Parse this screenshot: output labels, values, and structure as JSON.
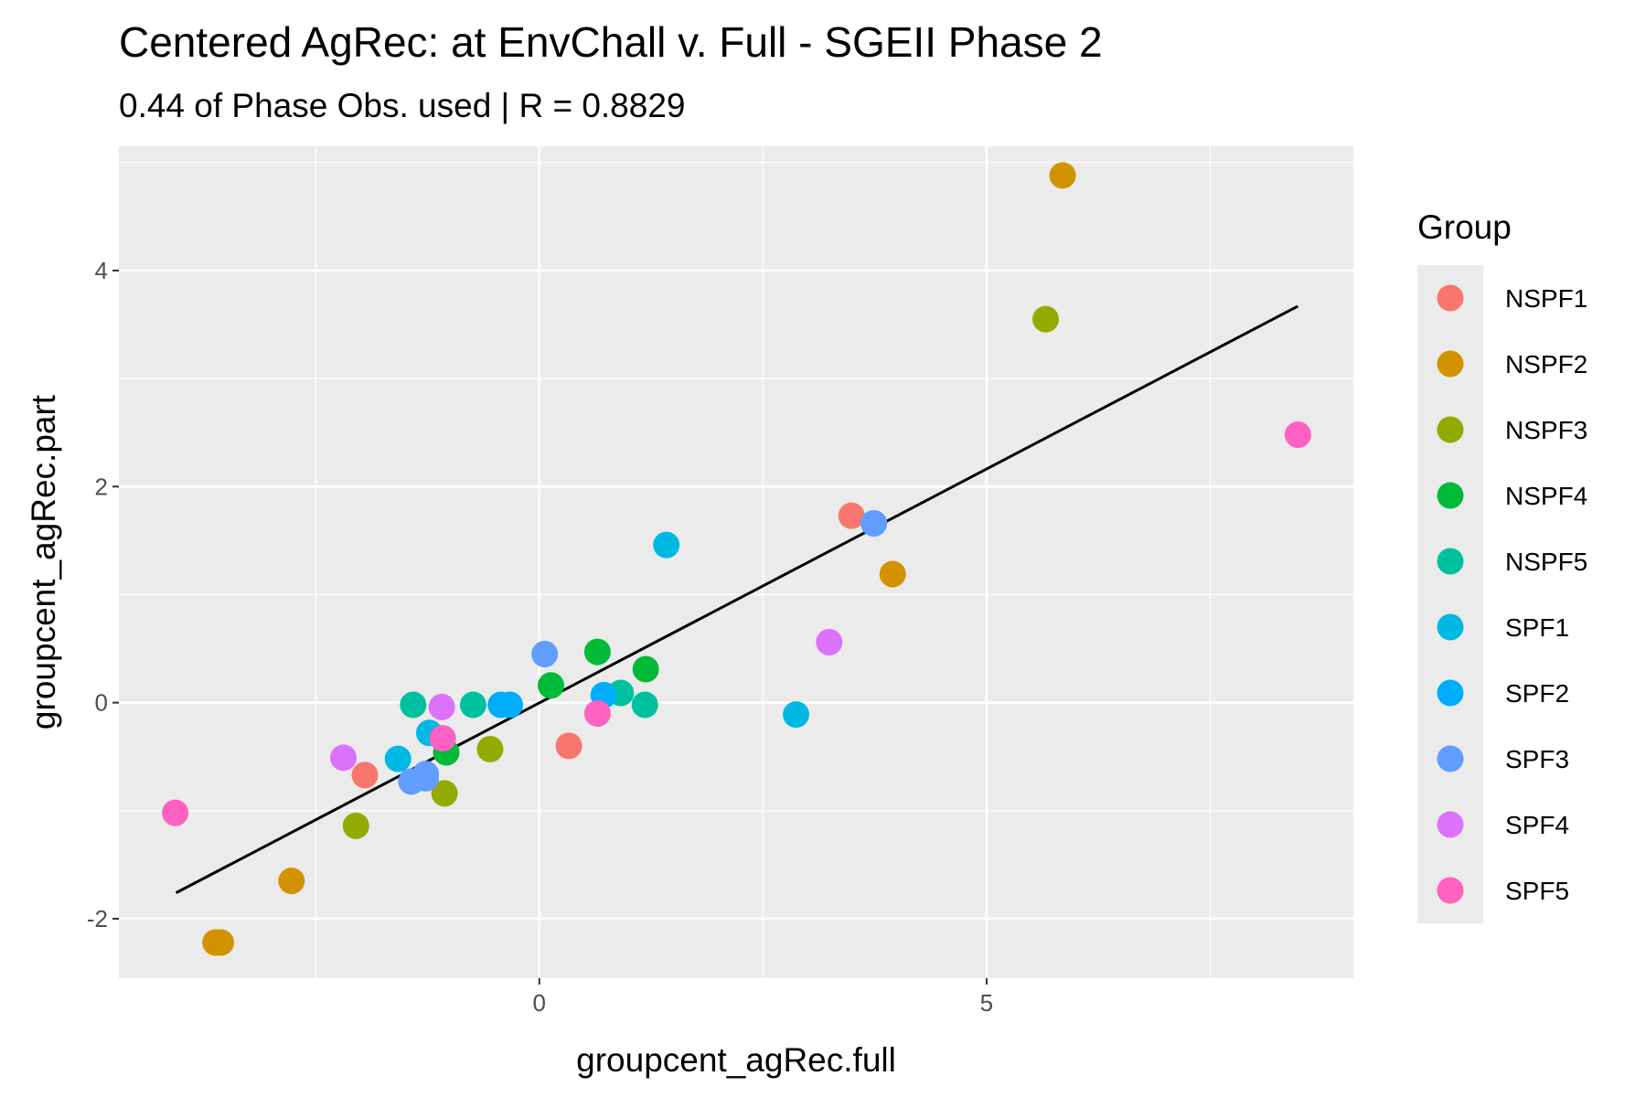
{
  "chart_data": {
    "type": "scatter",
    "title": "Centered AgRec: at EnvChall v. Full - SGEII Phase 2",
    "subtitle": "0.44 of Phase Obs. used | R = 0.8829",
    "xlabel": "groupcent_agRec.full",
    "ylabel": "groupcent_agRec.part",
    "xlim": [
      -4.7,
      9.1
    ],
    "ylim": [
      -2.55,
      5.15
    ],
    "x_ticks": [
      0,
      5
    ],
    "x_minor_ticks": [
      -2.5,
      2.5,
      7.5
    ],
    "y_ticks": [
      -2,
      0,
      2,
      4
    ],
    "y_minor_ticks": [
      -1,
      1,
      3,
      5
    ],
    "grid": true,
    "legend_position": "right",
    "legend_title": "Group",
    "fit_line": {
      "x": [
        -4.06,
        8.48
      ],
      "y": [
        -1.76,
        3.67
      ]
    },
    "series": [
      {
        "name": "NSPF1",
        "color": "#F8766D",
        "points": [
          [
            -1.95,
            -0.67
          ],
          [
            0.33,
            -0.4
          ],
          [
            3.49,
            1.73
          ]
        ]
      },
      {
        "name": "NSPF2",
        "color": "#D39200",
        "points": [
          [
            5.85,
            4.88
          ],
          [
            3.95,
            1.19
          ],
          [
            -2.77,
            -1.65
          ],
          [
            -3.56,
            -2.22
          ],
          [
            -3.62,
            -2.22
          ]
        ]
      },
      {
        "name": "NSPF3",
        "color": "#93AA00",
        "points": [
          [
            5.66,
            3.55
          ],
          [
            -0.55,
            -0.43
          ],
          [
            -1.06,
            -0.84
          ],
          [
            -2.05,
            -1.14
          ]
        ]
      },
      {
        "name": "NSPF4",
        "color": "#00BA38",
        "points": [
          [
            0.65,
            0.47
          ],
          [
            1.19,
            0.31
          ],
          [
            0.13,
            0.16
          ],
          [
            -1.04,
            -0.46
          ]
        ]
      },
      {
        "name": "NSPF5",
        "color": "#00C19F",
        "points": [
          [
            -1.41,
            -0.02
          ],
          [
            -0.74,
            -0.02
          ],
          [
            0.91,
            0.09
          ],
          [
            1.18,
            -0.02
          ]
        ]
      },
      {
        "name": "SPF1",
        "color": "#00B9E3",
        "points": [
          [
            1.42,
            1.46
          ],
          [
            2.87,
            -0.11
          ],
          [
            -1.23,
            -0.28
          ],
          [
            -1.58,
            -0.52
          ]
        ]
      },
      {
        "name": "SPF2",
        "color": "#00ADFA",
        "points": [
          [
            -0.43,
            -0.02
          ],
          [
            -0.33,
            -0.02
          ],
          [
            0.72,
            0.07
          ]
        ]
      },
      {
        "name": "SPF3",
        "color": "#619CFF",
        "points": [
          [
            3.74,
            1.66
          ],
          [
            0.06,
            0.45
          ],
          [
            -1.27,
            -0.66
          ],
          [
            -1.43,
            -0.73
          ],
          [
            -1.27,
            -0.7
          ]
        ]
      },
      {
        "name": "SPF4",
        "color": "#DB72FB",
        "points": [
          [
            3.24,
            0.56
          ],
          [
            -1.09,
            -0.04
          ],
          [
            -2.19,
            -0.51
          ]
        ]
      },
      {
        "name": "SPF5",
        "color": "#FF61C3",
        "points": [
          [
            8.48,
            2.48
          ],
          [
            0.65,
            -0.1
          ],
          [
            -1.08,
            -0.33
          ],
          [
            -4.07,
            -1.02
          ]
        ]
      }
    ]
  }
}
